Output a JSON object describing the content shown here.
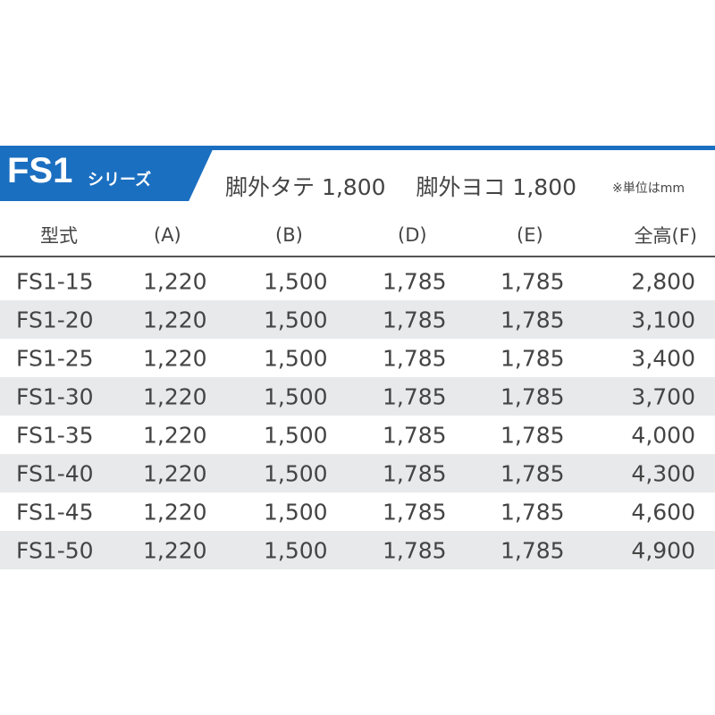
{
  "title": {
    "series": "FS1",
    "suffix": "シリーズ"
  },
  "specs": [
    "脚外タテ 1,800",
    "脚外ヨコ 1,800"
  ],
  "unit_note": "※単位はmm",
  "colors": {
    "accent": "#1b6fc0",
    "stripe": "#e7e9eb"
  },
  "table": {
    "headers": [
      "型式",
      "(A)",
      "(B)",
      "(D)",
      "(E)",
      "全高(F)"
    ],
    "rows": [
      [
        "FS1-15",
        "1,220",
        "1,500",
        "1,785",
        "1,785",
        "2,800"
      ],
      [
        "FS1-20",
        "1,220",
        "1,500",
        "1,785",
        "1,785",
        "3,100"
      ],
      [
        "FS1-25",
        "1,220",
        "1,500",
        "1,785",
        "1,785",
        "3,400"
      ],
      [
        "FS1-30",
        "1,220",
        "1,500",
        "1,785",
        "1,785",
        "3,700"
      ],
      [
        "FS1-35",
        "1,220",
        "1,500",
        "1,785",
        "1,785",
        "4,000"
      ],
      [
        "FS1-40",
        "1,220",
        "1,500",
        "1,785",
        "1,785",
        "4,300"
      ],
      [
        "FS1-45",
        "1,220",
        "1,500",
        "1,785",
        "1,785",
        "4,600"
      ],
      [
        "FS1-50",
        "1,220",
        "1,500",
        "1,785",
        "1,785",
        "4,900"
      ]
    ]
  }
}
